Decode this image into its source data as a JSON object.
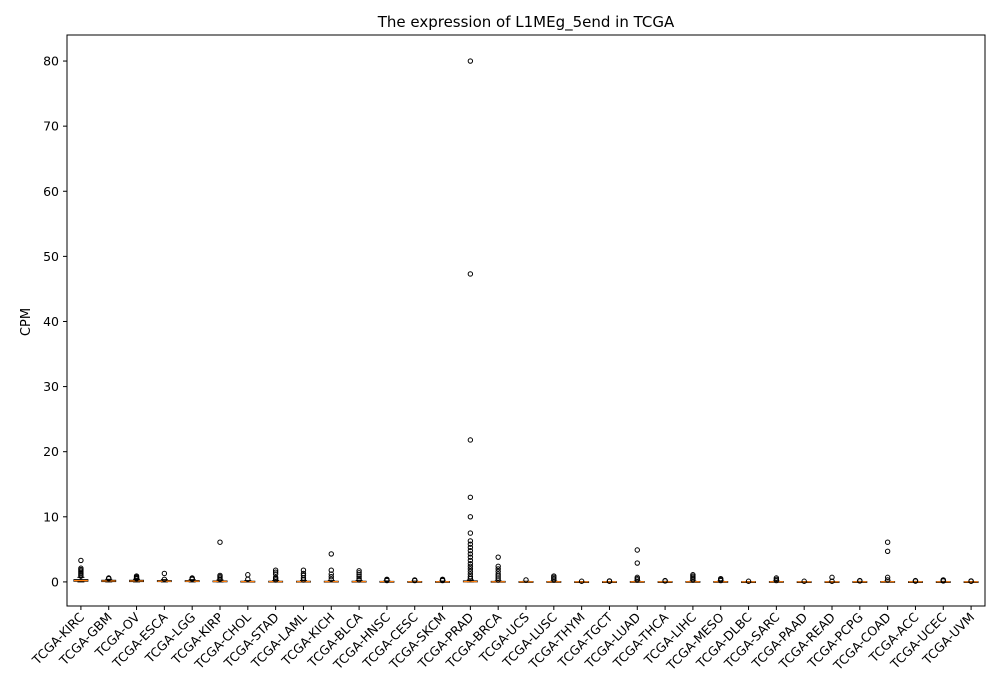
{
  "chart_data": {
    "type": "box",
    "title": "The expression of L1MEg_5end in TCGA",
    "xlabel": "",
    "ylabel": "CPM",
    "ylim": [
      -3.7,
      84
    ],
    "yticks": [
      0,
      10,
      20,
      30,
      40,
      50,
      60,
      70,
      80
    ],
    "grid": false,
    "categories": [
      "TCGA-KIRC",
      "TCGA-GBM",
      "TCGA-OV",
      "TCGA-ESCA",
      "TCGA-LGG",
      "TCGA-KIRP",
      "TCGA-CHOL",
      "TCGA-STAD",
      "TCGA-LAML",
      "TCGA-KICH",
      "TCGA-BLCA",
      "TCGA-HNSC",
      "TCGA-CESC",
      "TCGA-SKCM",
      "TCGA-PRAD",
      "TCGA-BRCA",
      "TCGA-UCS",
      "TCGA-LUSC",
      "TCGA-THYM",
      "TCGA-TGCT",
      "TCGA-LUAD",
      "TCGA-THCA",
      "TCGA-LIHC",
      "TCGA-MESO",
      "TCGA-DLBC",
      "TCGA-SARC",
      "TCGA-PAAD",
      "TCGA-READ",
      "TCGA-PCPG",
      "TCGA-COAD",
      "TCGA-ACC",
      "TCGA-UCEC",
      "TCGA-UVM"
    ],
    "boxes": [
      {
        "q1": 0.1,
        "median": 0.2,
        "q3": 0.35,
        "whislo": 0,
        "whishi": 0.7,
        "fliers": [
          0.9,
          1.1,
          1.3,
          1.5,
          1.7,
          1.9,
          2.1,
          3.3
        ]
      },
      {
        "q1": 0.05,
        "median": 0.15,
        "q3": 0.25,
        "whislo": 0,
        "whishi": 0.4,
        "fliers": [
          0.5,
          0.6
        ]
      },
      {
        "q1": 0.05,
        "median": 0.15,
        "q3": 0.25,
        "whislo": 0,
        "whishi": 0.4,
        "fliers": [
          0.5,
          0.6,
          0.75,
          0.9
        ]
      },
      {
        "q1": 0.05,
        "median": 0.1,
        "q3": 0.2,
        "whislo": 0,
        "whishi": 0.35,
        "fliers": [
          0.4,
          1.3
        ]
      },
      {
        "q1": 0.05,
        "median": 0.1,
        "q3": 0.2,
        "whislo": 0,
        "whishi": 0.35,
        "fliers": [
          0.4,
          0.5,
          0.6
        ]
      },
      {
        "q1": 0.02,
        "median": 0.08,
        "q3": 0.15,
        "whislo": 0,
        "whishi": 0.3,
        "fliers": [
          0.4,
          0.6,
          0.8,
          1.0,
          6.1
        ]
      },
      {
        "q1": 0.02,
        "median": 0.05,
        "q3": 0.1,
        "whislo": 0,
        "whishi": 0.2,
        "fliers": [
          0.4,
          1.1
        ]
      },
      {
        "q1": 0.02,
        "median": 0.05,
        "q3": 0.1,
        "whislo": 0,
        "whishi": 0.2,
        "fliers": [
          0.3,
          0.5,
          0.7,
          1.2,
          1.5,
          1.8
        ]
      },
      {
        "q1": 0.02,
        "median": 0.05,
        "q3": 0.1,
        "whislo": 0,
        "whishi": 0.2,
        "fliers": [
          0.3,
          0.6,
          1.0,
          1.3,
          1.8
        ]
      },
      {
        "q1": 0.02,
        "median": 0.05,
        "q3": 0.1,
        "whislo": 0,
        "whishi": 0.2,
        "fliers": [
          0.4,
          0.8,
          1.2,
          1.8,
          4.3
        ]
      },
      {
        "q1": 0.02,
        "median": 0.05,
        "q3": 0.1,
        "whislo": 0,
        "whishi": 0.2,
        "fliers": [
          0.3,
          0.5,
          0.8,
          1.1,
          1.4,
          1.7
        ]
      },
      {
        "q1": 0.02,
        "median": 0.05,
        "q3": 0.08,
        "whislo": 0,
        "whishi": 0.15,
        "fliers": [
          0.2,
          0.3,
          0.4
        ]
      },
      {
        "q1": 0.01,
        "median": 0.03,
        "q3": 0.06,
        "whislo": 0,
        "whishi": 0.12,
        "fliers": [
          0.2,
          0.3
        ]
      },
      {
        "q1": 0.01,
        "median": 0.03,
        "q3": 0.06,
        "whislo": 0,
        "whishi": 0.12,
        "fliers": [
          0.2,
          0.3,
          0.4
        ]
      },
      {
        "q1": 0.01,
        "median": 0.05,
        "q3": 0.15,
        "whislo": 0,
        "whishi": 0.3,
        "fliers": [
          0.5,
          0.8,
          1.2,
          1.6,
          2.0,
          2.4,
          2.8,
          3.3,
          3.8,
          4.3,
          4.8,
          5.3,
          5.8,
          6.3,
          7.5,
          10.0,
          13.0,
          21.8,
          47.3,
          80.0
        ]
      },
      {
        "q1": 0.01,
        "median": 0.03,
        "q3": 0.08,
        "whislo": 0,
        "whishi": 0.15,
        "fliers": [
          0.3,
          0.6,
          0.9,
          1.2,
          1.6,
          2.0,
          2.4,
          3.8
        ]
      },
      {
        "q1": 0.0,
        "median": 0.02,
        "q3": 0.05,
        "whislo": 0,
        "whishi": 0.1,
        "fliers": [
          0.3
        ]
      },
      {
        "q1": 0.01,
        "median": 0.03,
        "q3": 0.06,
        "whislo": 0,
        "whishi": 0.12,
        "fliers": [
          0.3,
          0.5,
          0.7,
          0.9
        ]
      },
      {
        "q1": 0.0,
        "median": 0.01,
        "q3": 0.03,
        "whislo": 0,
        "whishi": 0.06,
        "fliers": [
          0.1
        ]
      },
      {
        "q1": 0.0,
        "median": 0.01,
        "q3": 0.03,
        "whislo": 0,
        "whishi": 0.06,
        "fliers": [
          0.1,
          0.15
        ]
      },
      {
        "q1": 0.01,
        "median": 0.03,
        "q3": 0.06,
        "whislo": 0,
        "whishi": 0.12,
        "fliers": [
          0.3,
          0.5,
          0.7,
          2.9,
          4.9
        ]
      },
      {
        "q1": 0.0,
        "median": 0.02,
        "q3": 0.04,
        "whislo": 0,
        "whishi": 0.08,
        "fliers": [
          0.15,
          0.2
        ]
      },
      {
        "q1": 0.01,
        "median": 0.03,
        "q3": 0.06,
        "whislo": 0,
        "whishi": 0.12,
        "fliers": [
          0.3,
          0.5,
          0.7,
          0.9,
          1.1
        ]
      },
      {
        "q1": 0.01,
        "median": 0.03,
        "q3": 0.06,
        "whislo": 0,
        "whishi": 0.12,
        "fliers": [
          0.2,
          0.35,
          0.5
        ]
      },
      {
        "q1": 0.0,
        "median": 0.01,
        "q3": 0.03,
        "whislo": 0,
        "whishi": 0.06,
        "fliers": [
          0.1
        ]
      },
      {
        "q1": 0.01,
        "median": 0.03,
        "q3": 0.06,
        "whislo": 0,
        "whishi": 0.12,
        "fliers": [
          0.2,
          0.4,
          0.6
        ]
      },
      {
        "q1": 0.0,
        "median": 0.01,
        "q3": 0.03,
        "whislo": 0,
        "whishi": 0.06,
        "fliers": [
          0.1
        ]
      },
      {
        "q1": 0.0,
        "median": 0.01,
        "q3": 0.03,
        "whislo": 0,
        "whishi": 0.06,
        "fliers": [
          0.1,
          0.7
        ]
      },
      {
        "q1": 0.0,
        "median": 0.02,
        "q3": 0.04,
        "whislo": 0,
        "whishi": 0.08,
        "fliers": [
          0.15,
          0.2
        ]
      },
      {
        "q1": 0.01,
        "median": 0.03,
        "q3": 0.06,
        "whislo": 0,
        "whishi": 0.12,
        "fliers": [
          0.3,
          0.7,
          4.7,
          6.1
        ]
      },
      {
        "q1": 0.0,
        "median": 0.02,
        "q3": 0.04,
        "whislo": 0,
        "whishi": 0.08,
        "fliers": [
          0.12,
          0.2
        ]
      },
      {
        "q1": 0.0,
        "median": 0.02,
        "q3": 0.04,
        "whislo": 0,
        "whishi": 0.08,
        "fliers": [
          0.15,
          0.25,
          0.3
        ]
      },
      {
        "q1": 0.0,
        "median": 0.01,
        "q3": 0.03,
        "whislo": 0,
        "whishi": 0.06,
        "fliers": [
          0.1,
          0.15
        ]
      }
    ]
  }
}
